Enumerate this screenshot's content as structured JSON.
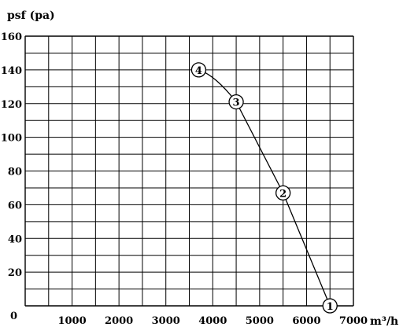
{
  "chart_data": {
    "type": "line",
    "xlabel": "m³/h",
    "ylabel": "psf (pa)",
    "xlim": [
      0,
      7000
    ],
    "ylim": [
      0,
      160
    ],
    "x_ticks": [
      "1000",
      "2000",
      "3000",
      "4000",
      "5000",
      "6000",
      "7000"
    ],
    "y_ticks": [
      "20",
      "40",
      "60",
      "80",
      "100",
      "120",
      "140",
      "160"
    ],
    "origin_label": "0",
    "grid": true,
    "series": [
      {
        "values": [
          {
            "x": 3700,
            "y": 140,
            "label": "4"
          },
          {
            "x": 4500,
            "y": 121,
            "label": "3"
          },
          {
            "x": 5500,
            "y": 67,
            "label": "2"
          },
          {
            "x": 6500,
            "y": 0,
            "label": "1"
          }
        ]
      }
    ]
  }
}
